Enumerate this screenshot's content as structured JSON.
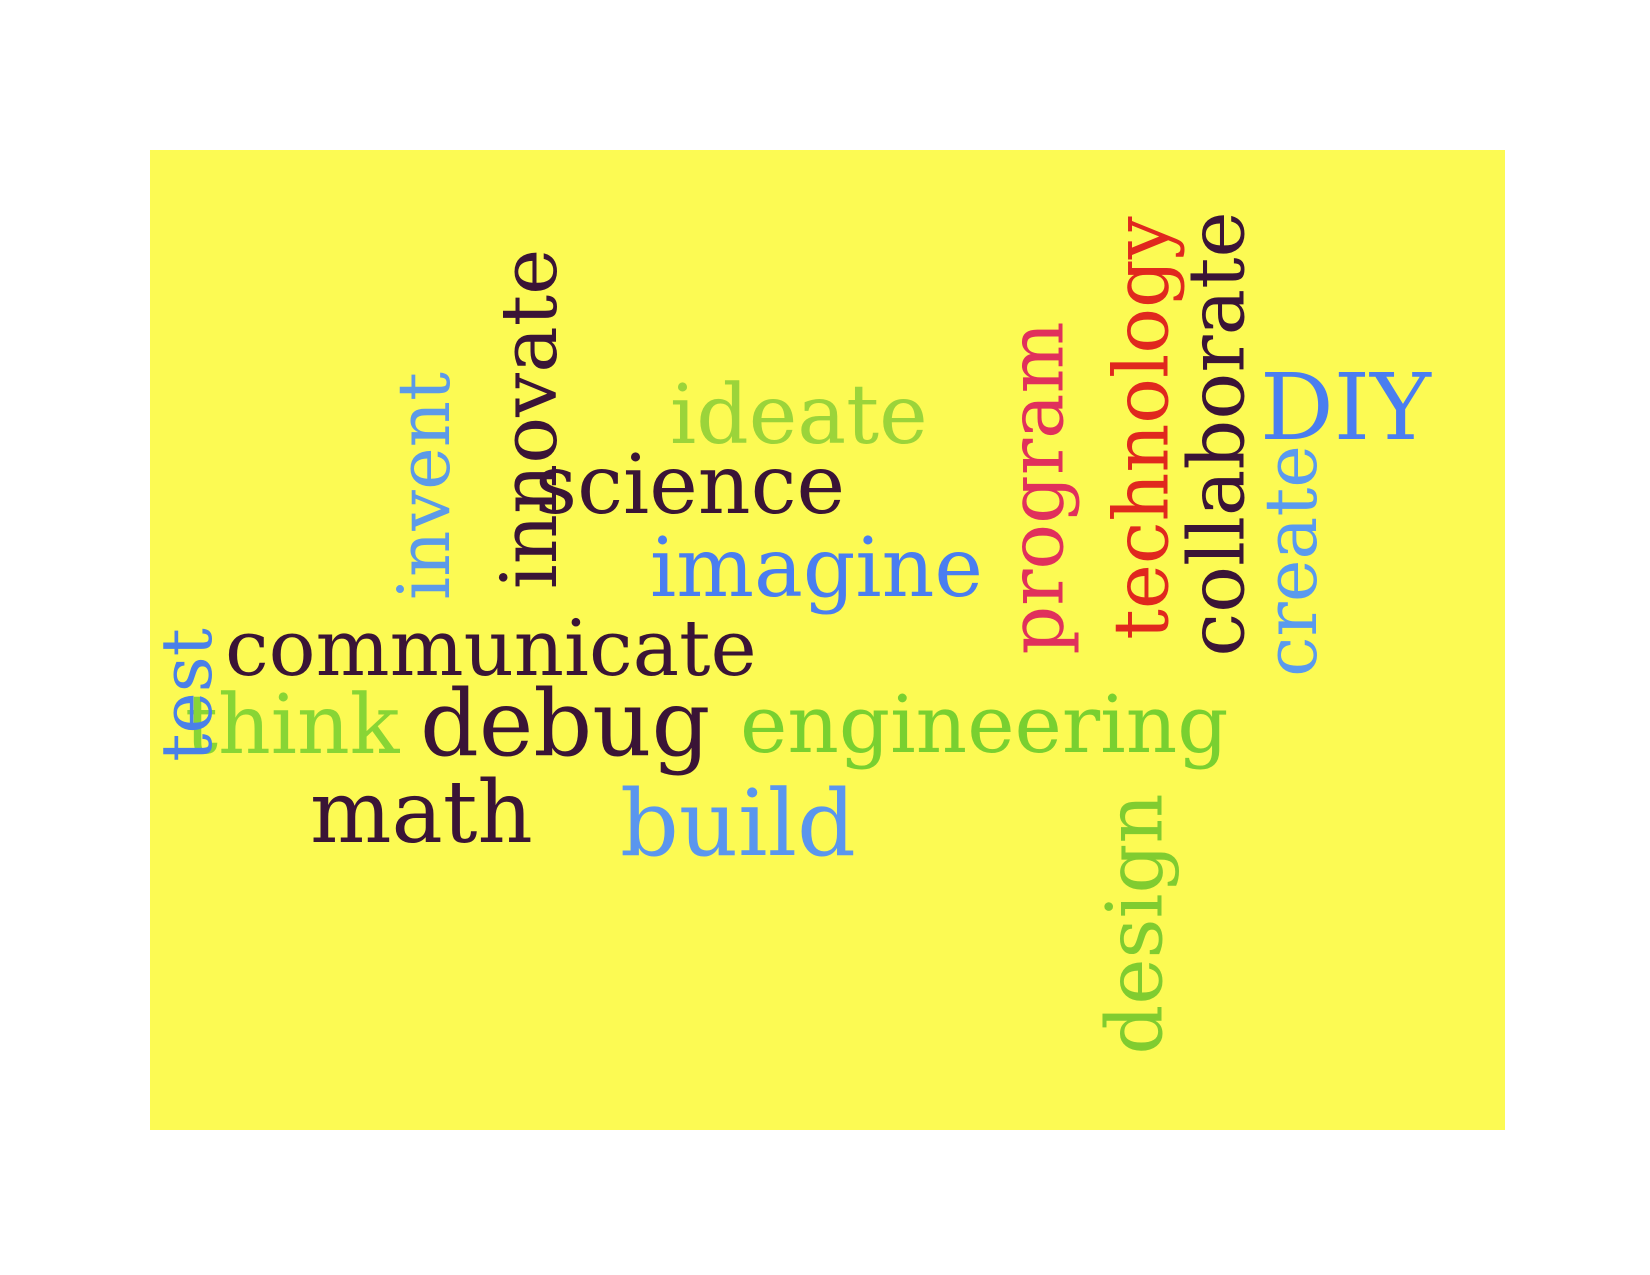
{
  "words": {
    "science": {
      "text": "science",
      "color": "#3a1436"
    },
    "ideate": {
      "text": "ideate",
      "color": "#9bd43a"
    },
    "imagine": {
      "text": "imagine",
      "color": "#4a7ef0"
    },
    "communicate": {
      "text": "communicate",
      "color": "#3a1436"
    },
    "think": {
      "text": "think",
      "color": "#88d535"
    },
    "debug": {
      "text": "debug",
      "color": "#3a1436"
    },
    "engineering": {
      "text": "engineering",
      "color": "#79d030"
    },
    "math": {
      "text": "math",
      "color": "#3a1436"
    },
    "build": {
      "text": "build",
      "color": "#5a96ee"
    },
    "diy": {
      "text": "DIY",
      "color": "#4a7ef0"
    },
    "test": {
      "text": "test",
      "color": "#4a80e8"
    },
    "invent": {
      "text": "invent",
      "color": "#5c9ae8"
    },
    "innovate": {
      "text": "innovate",
      "color": "#3a1436"
    },
    "program": {
      "text": "program",
      "color": "#e0305c"
    },
    "technology": {
      "text": "technology",
      "color": "#e0281e"
    },
    "collaborate": {
      "text": "collaborate",
      "color": "#3a1436"
    },
    "create": {
      "text": "create",
      "color": "#5a9aee"
    },
    "design": {
      "text": "design",
      "color": "#80cc30"
    }
  },
  "colors": {
    "background": "#fcfa53",
    "page": "#ffffff"
  }
}
